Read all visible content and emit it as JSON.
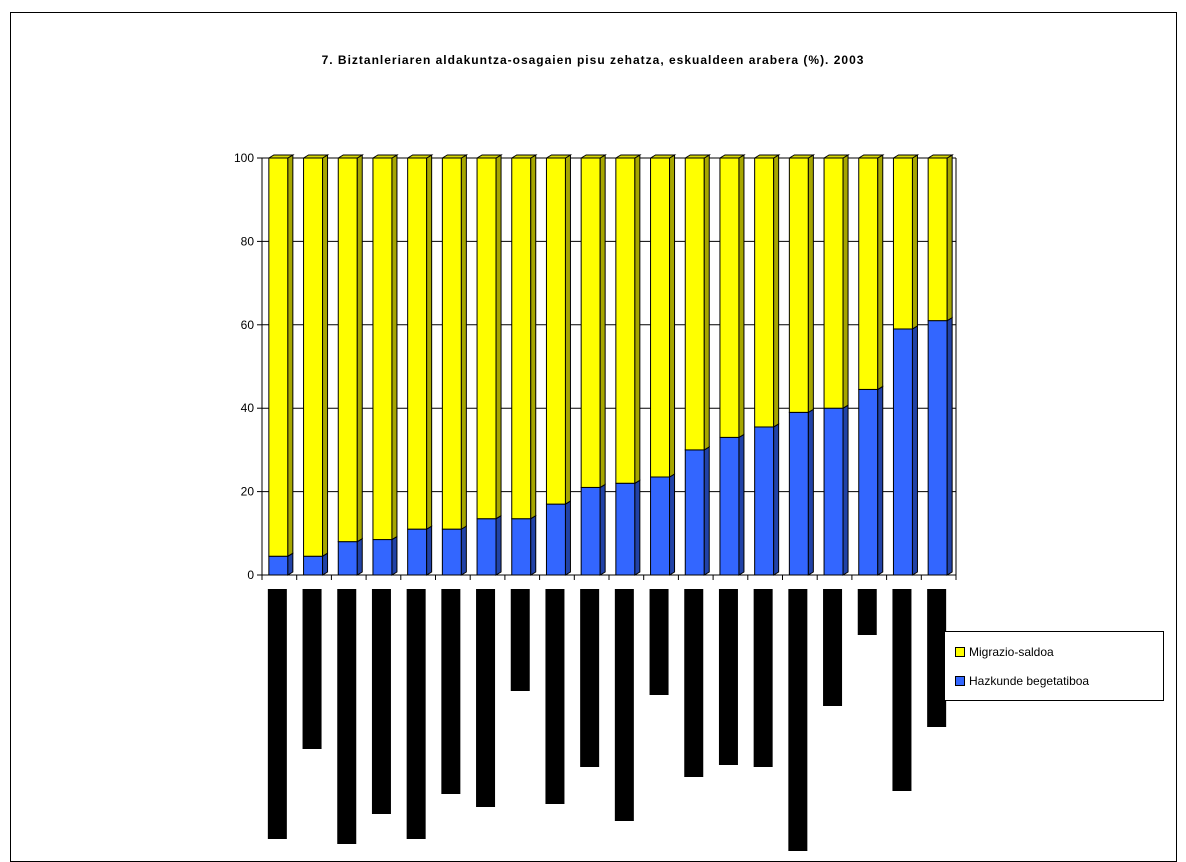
{
  "chart_data": {
    "type": "bar",
    "stacked": true,
    "title": "7. Biztanleriaren aldakuntza-osagaien pisu zehatza, eskualdeen arabera (%). 2003",
    "xlabel": "",
    "ylabel": "",
    "ylim": [
      0,
      100
    ],
    "yticks": [
      "0",
      "20",
      "40",
      "60",
      "80",
      "100"
    ],
    "grid": true,
    "legend_position": "right",
    "categories": [
      "",
      "",
      "",
      "",
      "",
      "",
      "",
      "",
      "",
      "",
      "",
      "",
      "",
      "",
      "",
      "",
      "",
      "",
      "",
      ""
    ],
    "series": [
      {
        "name": "Hazkunde begetatiboa",
        "color": "#3366ff",
        "values": [
          4.5,
          4.5,
          8,
          8.5,
          11,
          11,
          13.5,
          13.5,
          17,
          21,
          22,
          23.5,
          30,
          33,
          35.5,
          39,
          40,
          44.5,
          59,
          61
        ]
      },
      {
        "name": "Migrazio-saldoa",
        "color": "#ffff00",
        "values": [
          95.5,
          95.5,
          92,
          91.5,
          89,
          89,
          86.5,
          86.5,
          83,
          79,
          78,
          76.5,
          70,
          67,
          64.5,
          61,
          60,
          55.5,
          41,
          39
        ]
      }
    ],
    "category_label_bar_lengths": [
      250,
      160,
      255,
      225,
      250,
      205,
      218,
      102,
      215,
      178,
      232,
      106,
      188,
      176,
      178,
      262,
      117,
      46,
      202,
      138
    ],
    "category_label_color": "#000000"
  },
  "legend": {
    "items": [
      {
        "label": "Migrazio-saldoa",
        "color": "#ffff00"
      },
      {
        "label": "Hazkunde begetatiboa",
        "color": "#3366ff"
      }
    ]
  }
}
